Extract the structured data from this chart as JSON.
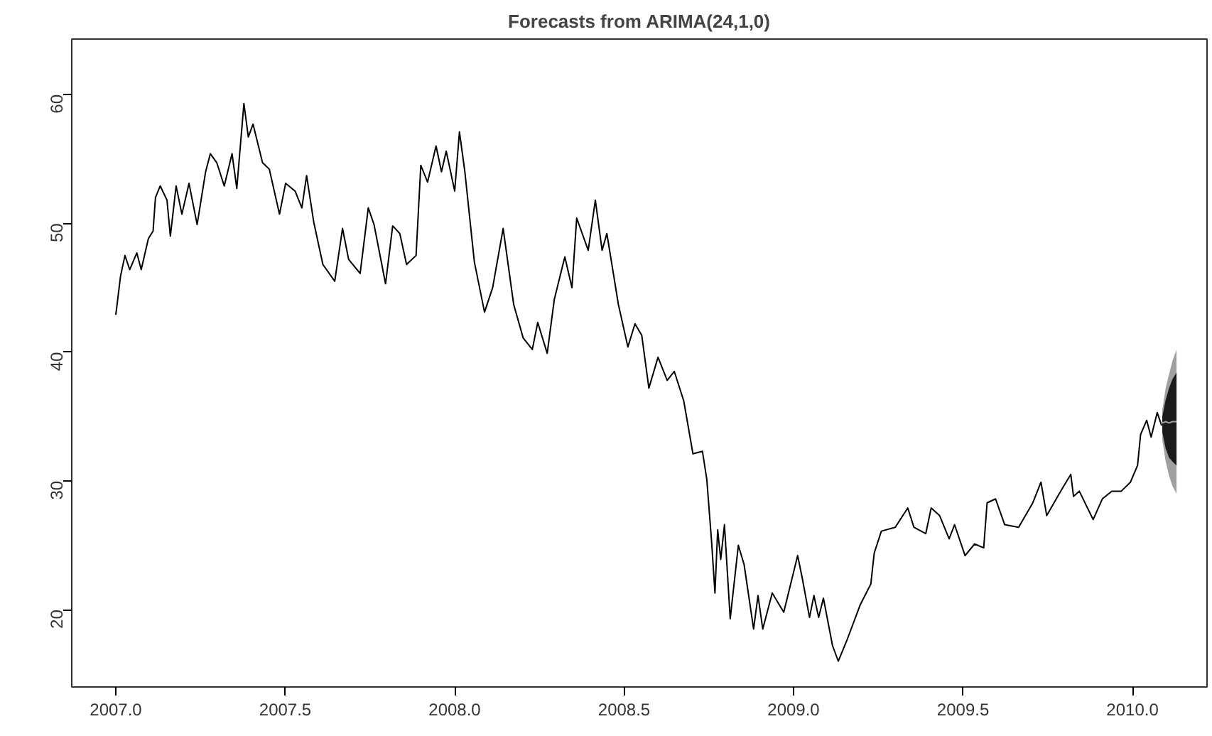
{
  "chart_data": {
    "type": "line",
    "title": "Forecasts from ARIMA(24,1,0)",
    "xlim": [
      2006.87,
      2010.22
    ],
    "ylim": [
      14,
      64.3
    ],
    "xticks": [
      {
        "value": 2007,
        "label": "2007.0"
      },
      {
        "value": 2007.5,
        "label": "2007.5"
      },
      {
        "value": 2008,
        "label": "2008.0"
      },
      {
        "value": 2008.5,
        "label": "2008.5"
      },
      {
        "value": 2009,
        "label": "2009.0"
      },
      {
        "value": 2009.5,
        "label": "2009.5"
      },
      {
        "value": 2010,
        "label": "2010.0"
      }
    ],
    "yticks": [
      20,
      30,
      40,
      50,
      60
    ],
    "grid": false,
    "marker": "none",
    "line_style": "solid",
    "series": [
      {
        "color": "#000000",
        "x": [
          2007.0,
          2007.014,
          2007.027,
          2007.041,
          2007.062,
          2007.075,
          2007.096,
          2007.11,
          2007.117,
          2007.131,
          2007.151,
          2007.161,
          2007.178,
          2007.195,
          2007.216,
          2007.24,
          2007.265,
          2007.279,
          2007.298,
          2007.32,
          2007.343,
          2007.357,
          2007.378,
          2007.391,
          2007.405,
          2007.433,
          2007.453,
          2007.483,
          2007.501,
          2007.529,
          2007.549,
          2007.563,
          2007.584,
          2007.611,
          2007.646,
          2007.669,
          2007.687,
          2007.721,
          2007.745,
          2007.762,
          2007.796,
          2007.817,
          2007.838,
          2007.858,
          2007.886,
          2007.9,
          2007.92,
          2007.945,
          2007.961,
          2007.975,
          2008.0,
          2008.014,
          2008.03,
          2008.058,
          2008.088,
          2008.112,
          2008.143,
          2008.174,
          2008.202,
          2008.229,
          2008.245,
          2008.273,
          2008.294,
          2008.325,
          2008.346,
          2008.36,
          2008.394,
          2008.415,
          2008.435,
          2008.449,
          2008.483,
          2008.511,
          2008.532,
          2008.552,
          2008.573,
          2008.6,
          2008.627,
          2008.648,
          2008.676,
          2008.703,
          2008.731,
          2008.744,
          2008.758,
          2008.768,
          2008.776,
          2008.785,
          2008.796,
          2008.813,
          2008.837,
          2008.854,
          2008.882,
          2008.895,
          2008.909,
          2008.937,
          2008.971,
          2009.012,
          2009.026,
          2009.047,
          2009.06,
          2009.074,
          2009.088,
          2009.115,
          2009.132,
          2009.157,
          2009.197,
          2009.228,
          2009.238,
          2009.259,
          2009.3,
          2009.337,
          2009.355,
          2009.39,
          2009.406,
          2009.431,
          2009.459,
          2009.475,
          2009.506,
          2009.534,
          2009.561,
          2009.571,
          2009.596,
          2009.623,
          2009.664,
          2009.706,
          2009.73,
          2009.747,
          2009.788,
          2009.818,
          2009.826,
          2009.843,
          2009.884,
          2009.911,
          2009.939,
          2009.967,
          2009.994,
          2010.015,
          2010.024,
          2010.042,
          2010.055,
          2010.073,
          2010.086
        ],
        "values": [
          42.9,
          45.9,
          47.5,
          46.4,
          47.7,
          46.4,
          48.8,
          49.4,
          52.0,
          52.9,
          51.8,
          49.0,
          52.9,
          50.7,
          53.1,
          49.9,
          54.0,
          55.4,
          54.7,
          52.9,
          55.4,
          52.7,
          59.3,
          56.7,
          57.7,
          54.7,
          54.2,
          50.7,
          53.1,
          52.5,
          51.2,
          53.7,
          50.1,
          46.8,
          45.5,
          49.6,
          47.2,
          46.1,
          51.2,
          49.9,
          45.3,
          49.8,
          49.2,
          46.8,
          47.5,
          54.5,
          53.2,
          56.0,
          54.0,
          55.6,
          52.5,
          57.1,
          54.0,
          47.0,
          43.1,
          45.0,
          49.6,
          43.7,
          41.1,
          40.2,
          42.3,
          39.9,
          44.1,
          47.4,
          45.0,
          50.4,
          47.9,
          51.8,
          47.9,
          49.2,
          43.7,
          40.4,
          42.2,
          41.3,
          37.2,
          39.6,
          37.8,
          38.5,
          36.2,
          32.1,
          32.3,
          30.1,
          25.3,
          21.3,
          26.2,
          23.9,
          26.6,
          19.3,
          25.0,
          23.5,
          18.5,
          21.1,
          18.5,
          21.3,
          19.8,
          24.2,
          22.4,
          19.4,
          21.1,
          19.4,
          20.9,
          17.2,
          16.0,
          17.6,
          20.4,
          22.0,
          24.4,
          26.1,
          26.4,
          27.9,
          26.4,
          25.9,
          27.9,
          27.3,
          25.5,
          26.6,
          24.2,
          25.1,
          24.8,
          28.3,
          28.6,
          26.6,
          26.4,
          28.3,
          29.9,
          27.3,
          29.2,
          30.5,
          28.8,
          29.2,
          27.0,
          28.6,
          29.2,
          29.2,
          29.9,
          31.2,
          33.6,
          34.7,
          33.4,
          35.3,
          34.3
        ]
      },
      {
        "color": "#a0a0a0",
        "x": [
          2010.088,
          2010.098,
          2010.108,
          2010.118,
          2010.13
        ],
        "values": [
          34.5,
          34.6,
          34.5,
          34.6,
          34.6
        ],
        "lower": [
          33.2,
          31.5,
          30.4,
          29.6,
          29.0
        ],
        "upper": [
          35.5,
          37.2,
          38.3,
          39.3,
          40.2
        ]
      },
      {
        "color": "#1a1a1a",
        "x": [
          2010.088,
          2010.098,
          2010.108,
          2010.118,
          2010.13
        ],
        "values": [
          null,
          null,
          null,
          null,
          null
        ],
        "lower": [
          33.8,
          32.5,
          31.8,
          31.5,
          31.2
        ],
        "upper": [
          35.0,
          36.3,
          37.2,
          37.9,
          38.4
        ]
      }
    ]
  }
}
